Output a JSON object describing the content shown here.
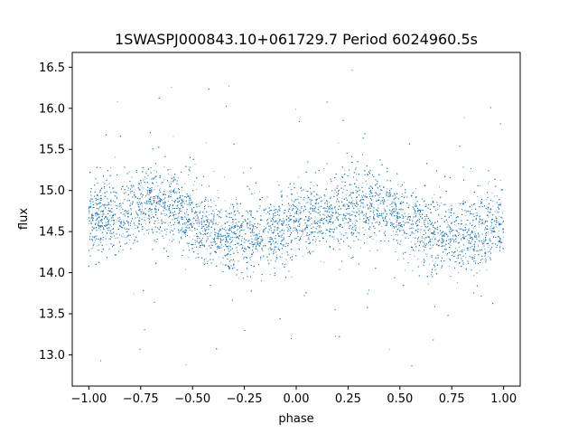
{
  "chart_data": {
    "type": "scatter",
    "title": "1SWASPJ000843.10+061729.7 Period 6024960.5s",
    "xlabel": "phase",
    "ylabel": "flux",
    "xlim": [
      -1.08,
      1.08
    ],
    "ylim": [
      12.62,
      16.68
    ],
    "xticks": [
      -1.0,
      -0.75,
      -0.5,
      -0.25,
      0.0,
      0.25,
      0.5,
      0.75,
      1.0
    ],
    "xtick_labels": [
      "−1.00",
      "−0.75",
      "−0.50",
      "−0.25",
      "0.00",
      "0.25",
      "0.50",
      "0.75",
      "1.00"
    ],
    "yticks": [
      13.0,
      13.5,
      14.0,
      14.5,
      15.0,
      15.5,
      16.0,
      16.5
    ],
    "ytick_labels": [
      "13.0",
      "13.5",
      "14.0",
      "14.5",
      "15.0",
      "15.5",
      "16.0",
      "16.5"
    ],
    "grid": false,
    "legend": "none",
    "point_color": "#1f77b4",
    "series": [
      {
        "x_range": [
          -1.0,
          1.0
        ],
        "trend": {
          "phase": [
            -1.0,
            -0.9,
            -0.8,
            -0.7,
            -0.6,
            -0.5,
            -0.4,
            -0.3,
            -0.2,
            -0.1,
            0.0,
            0.1,
            0.2,
            0.3,
            0.4,
            0.5,
            0.6,
            0.7,
            0.8,
            0.9,
            1.0
          ],
          "flux": [
            14.6,
            14.7,
            14.75,
            14.85,
            14.85,
            14.65,
            14.5,
            14.45,
            14.45,
            14.5,
            14.6,
            14.7,
            14.75,
            14.85,
            14.85,
            14.65,
            14.5,
            14.45,
            14.45,
            14.5,
            14.6
          ]
        },
        "core_scatter_std": 0.22,
        "outlier_range": [
          12.8,
          16.5
        ],
        "approx_points": 14000
      }
    ]
  }
}
